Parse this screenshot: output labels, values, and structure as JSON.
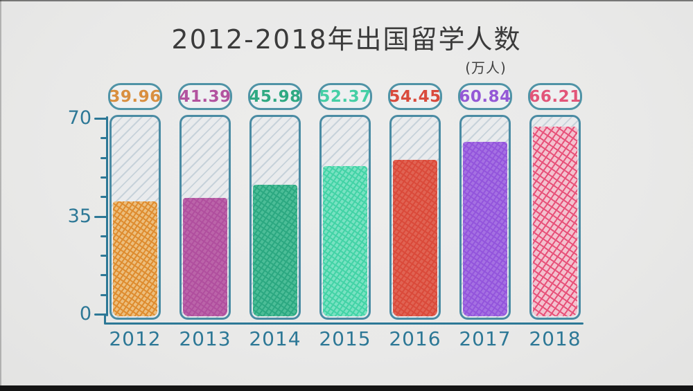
{
  "title": "2012-2018年出国留学人数",
  "unit_label": "(万人)",
  "axis": {
    "labels": [
      "70",
      "35",
      "0"
    ],
    "color": "#2d7896",
    "minor_tick_step": 7
  },
  "chart_data": {
    "type": "bar",
    "title": "2012-2018年出国留学人数",
    "ylabel": "万人",
    "xlabel": "",
    "categories": [
      "2012",
      "2013",
      "2014",
      "2015",
      "2016",
      "2017",
      "2018"
    ],
    "values": [
      39.96,
      41.39,
      45.98,
      52.37,
      54.45,
      60.84,
      66.21
    ],
    "ylim": [
      0,
      70
    ],
    "y_ticks": [
      0,
      35,
      70
    ],
    "grid": false,
    "legend": false,
    "style": "hand-drawn hatched thermometer tubes on paper texture",
    "colors": [
      {
        "stroke": "#de8c2f",
        "base": "#ecbe7d",
        "label": "#d98f3f"
      },
      {
        "stroke": "#b04f9e",
        "base": "#bb64a9",
        "label": "#b2539f"
      },
      {
        "stroke": "#2ca881",
        "base": "#4cbd97",
        "label": "#2fa982"
      },
      {
        "stroke": "#43d3a6",
        "base": "#79e2c2",
        "label": "#45cfa5"
      },
      {
        "stroke": "#da4a3a",
        "base": "#e06353",
        "label": "#d94a3c"
      },
      {
        "stroke": "#9355dc",
        "base": "#a571e2",
        "label": "#9459d6"
      },
      {
        "stroke": "#e75179",
        "base": "#f3c2cf",
        "label": "#e25579"
      }
    ],
    "accent_colors": {
      "tube_border": "#4a8ba3",
      "pill_border": "#4f93a6",
      "axis": "#2d7896",
      "title_text": "#3b3b3b"
    }
  }
}
